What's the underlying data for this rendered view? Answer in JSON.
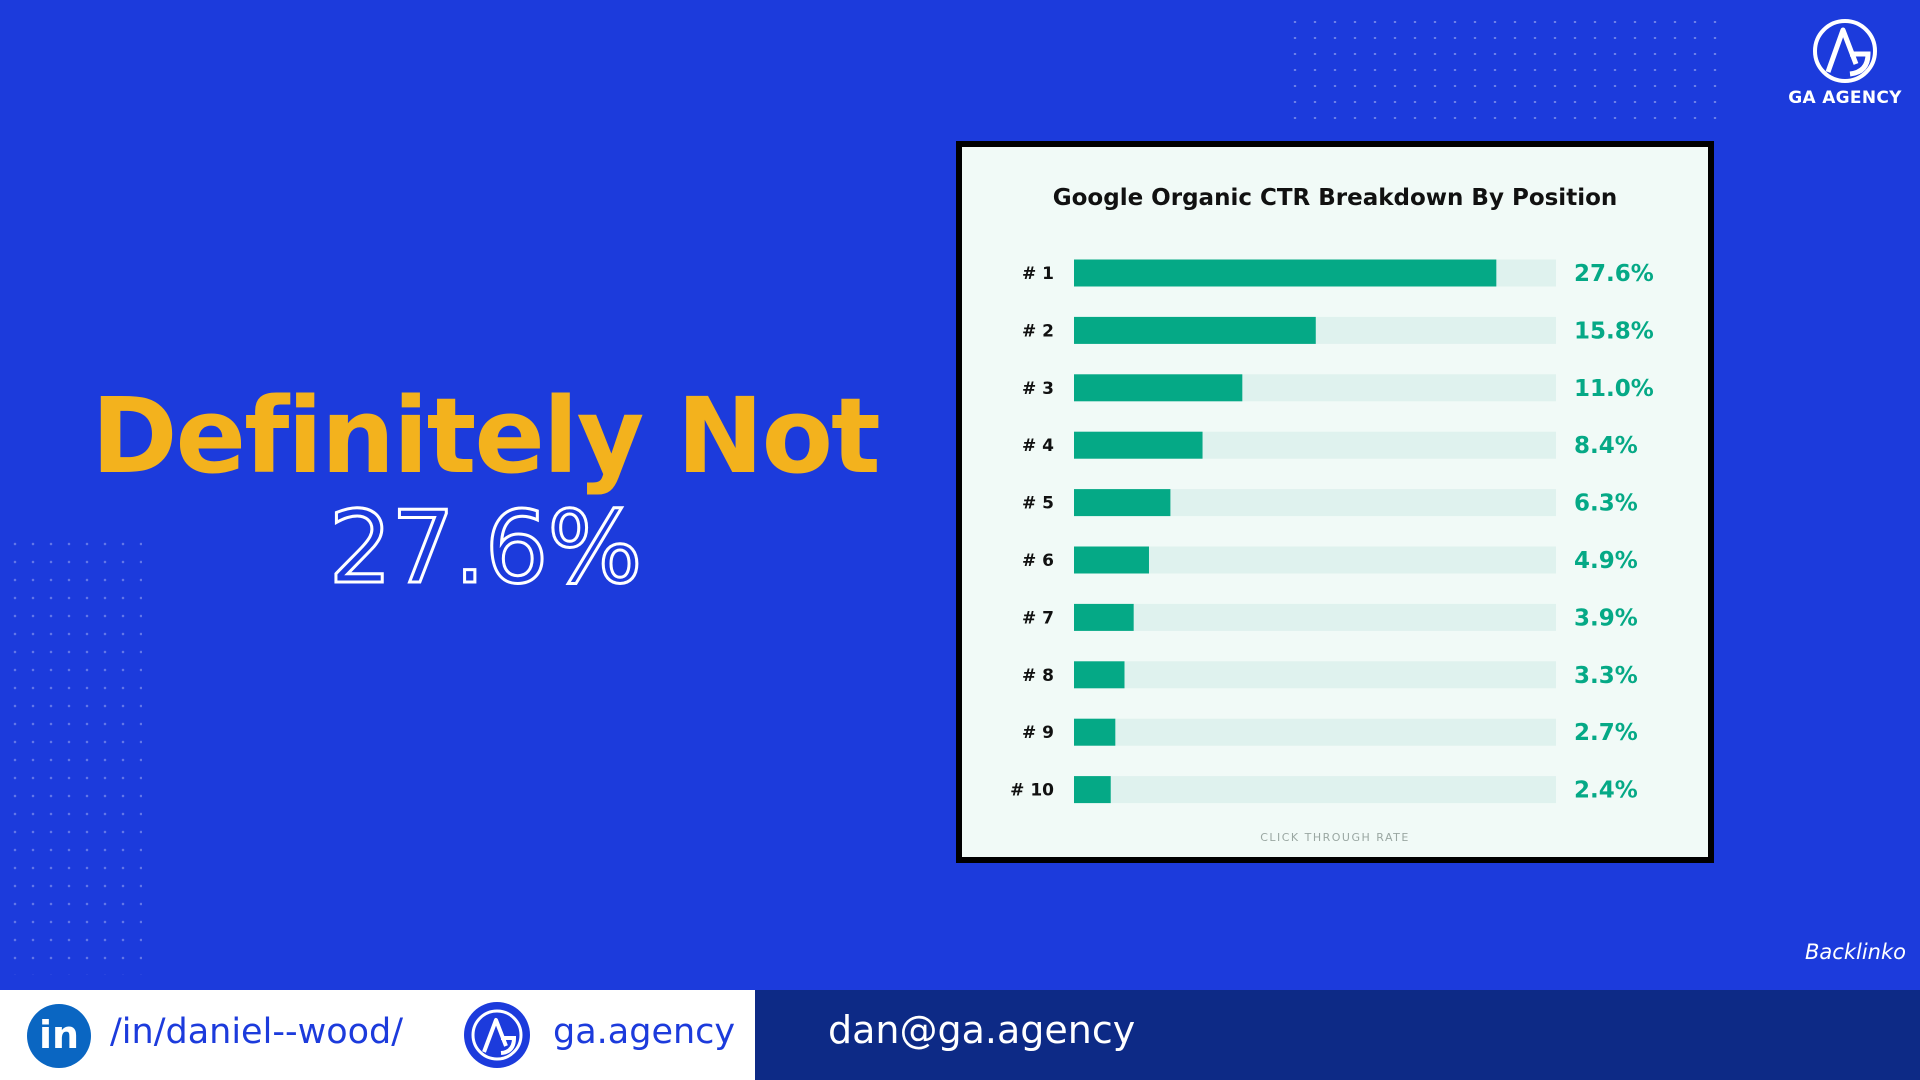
{
  "brand": {
    "name": "GA AGENCY"
  },
  "headline": {
    "line1": "Definitely Not",
    "line2": "27.6%"
  },
  "chart_data": {
    "type": "bar",
    "orientation": "horizontal",
    "title": "Google Organic CTR Breakdown By Position",
    "xlabel": "CLICK THROUGH RATE",
    "categories": [
      "# 1",
      "# 2",
      "# 3",
      "# 4",
      "# 5",
      "# 6",
      "# 7",
      "# 8",
      "# 9",
      "# 10"
    ],
    "values": [
      27.6,
      15.8,
      11.0,
      8.4,
      6.3,
      4.9,
      3.9,
      3.3,
      2.7,
      2.4
    ],
    "value_labels": [
      "27.6%",
      "15.8%",
      "11.0%",
      "8.4%",
      "6.3%",
      "4.9%",
      "3.9%",
      "3.3%",
      "2.7%",
      "2.4%"
    ],
    "xlim": [
      0,
      31.5
    ],
    "bar_color": "#05a986",
    "track_color": "#dff2ee",
    "grid": false,
    "legend": "none"
  },
  "source": "Backlinko",
  "footer": {
    "linkedin_label": "in",
    "linkedin": "/in/daniel--wood/",
    "website": "ga.agency",
    "email": "dan@ga.agency"
  },
  "colors": {
    "background": "#1c3bdc",
    "accent": "#f3b21d",
    "footer_dark": "#0d2a86"
  }
}
